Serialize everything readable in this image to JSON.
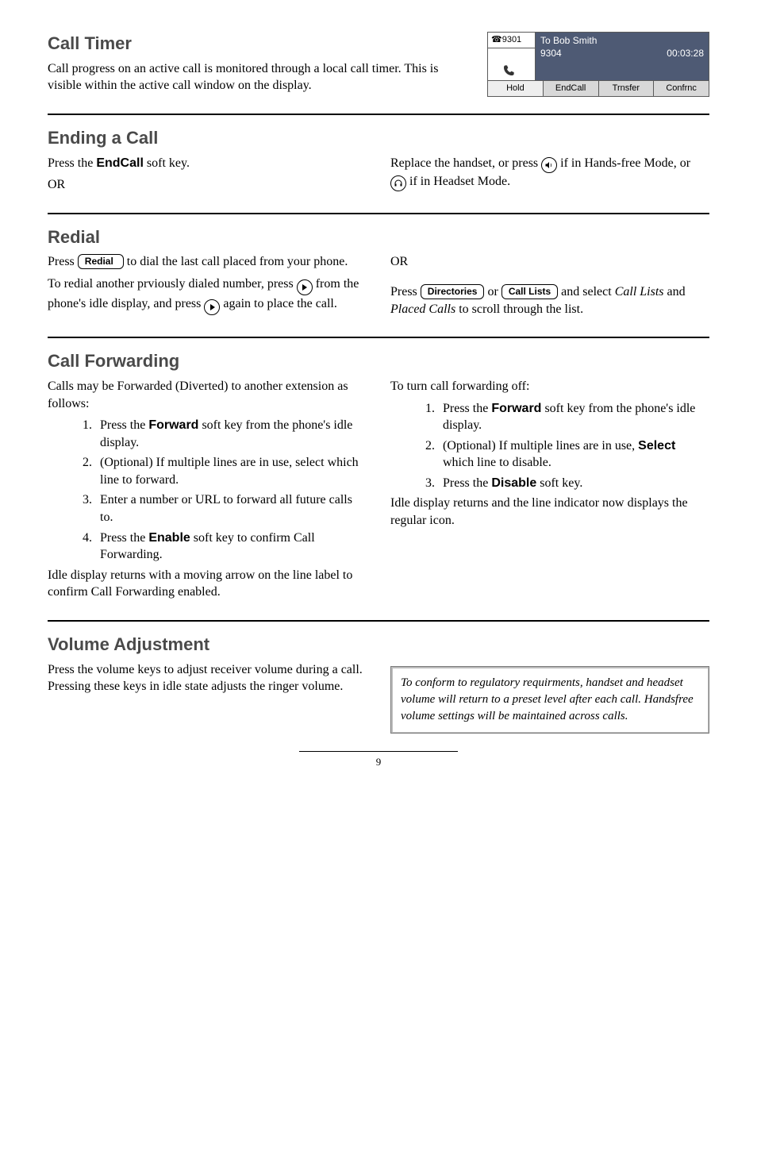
{
  "call_timer": {
    "title": "Call Timer",
    "body": "Call progress on an active call is monitored through a local call timer.  This is visible within the active call window on the display."
  },
  "phone_screen": {
    "ext_icon": "☎",
    "ext": "9301",
    "to_label": "To Bob Smith",
    "number": "9304",
    "timer": "00:03:28",
    "soft1": "Hold",
    "soft2": "EndCall",
    "soft3": "Trnsfer",
    "soft4": "Confrnc"
  },
  "ending": {
    "title": "Ending a Call",
    "left_l1_pre": "Press the ",
    "left_l1_key": "EndCall",
    "left_l1_post": " soft key.",
    "left_l2": "OR",
    "right_pre": "Replace the handset, or press ",
    "right_mid": " if in Hands-free Mode, or ",
    "right_post": " if in Headset Mode."
  },
  "redial": {
    "title": "Redial",
    "l1_pre": "Press ",
    "l1_btn": "Redial",
    "l1_post": " to dial the last call placed from your phone.",
    "l2_pre": "To redial another prviously dialed number, press ",
    "l2_mid": " from the phone's idle display, and press ",
    "l2_post": " again to place the call.",
    "r_or": "OR",
    "r2_pre": "Press ",
    "r2_btn1": "Directories",
    "r2_mid": " or ",
    "r2_btn2": "Call Lists",
    "r2_post": " and select ",
    "r2_em1": "Call Lists",
    "r2_and": " and ",
    "r2_em2": "Placed Calls",
    "r2_end": " to scroll through the list."
  },
  "fwd": {
    "title": "Call Forwarding",
    "left_intro": "Calls may be Forwarded (Diverted) to another extension as follows:",
    "left_items": [
      {
        "pre": "Press the ",
        "key": "Forward",
        "post": " soft key from the phone's idle display."
      },
      {
        "pre": "(Optional) If multiple lines are in use, select which line to forward."
      },
      {
        "pre": "Enter a number or URL to forward all future calls to."
      },
      {
        "pre": "Press the ",
        "key": "Enable",
        "post": " soft key to confirm Call Forwarding."
      }
    ],
    "left_outro": "Idle display returns with a moving arrow on the line label to confirm Call Forwarding enabled.",
    "right_intro": "To turn call forwarding off:",
    "right_items": [
      {
        "pre": "Press the ",
        "key": "Forward",
        "post": " soft key from the phone's idle display."
      },
      {
        "pre": "(Optional) If multiple lines are in use, ",
        "key": "Select",
        "post": " which line to disable."
      },
      {
        "pre": "Press the ",
        "key": "Disable",
        "post": " soft key."
      }
    ],
    "right_outro": "Idle display returns and the line indicator now displays the regular icon."
  },
  "volume": {
    "title": "Volume Adjustment",
    "body": "Press the volume keys to adjust receiver volume during a call.  Pressing these keys in idle state adjusts the ringer volume.",
    "note": "To conform to regulatory requirments, handset and headset volume will return to a preset level after each call.  Handsfree volume settings will be maintained across calls."
  },
  "page_number": "9"
}
